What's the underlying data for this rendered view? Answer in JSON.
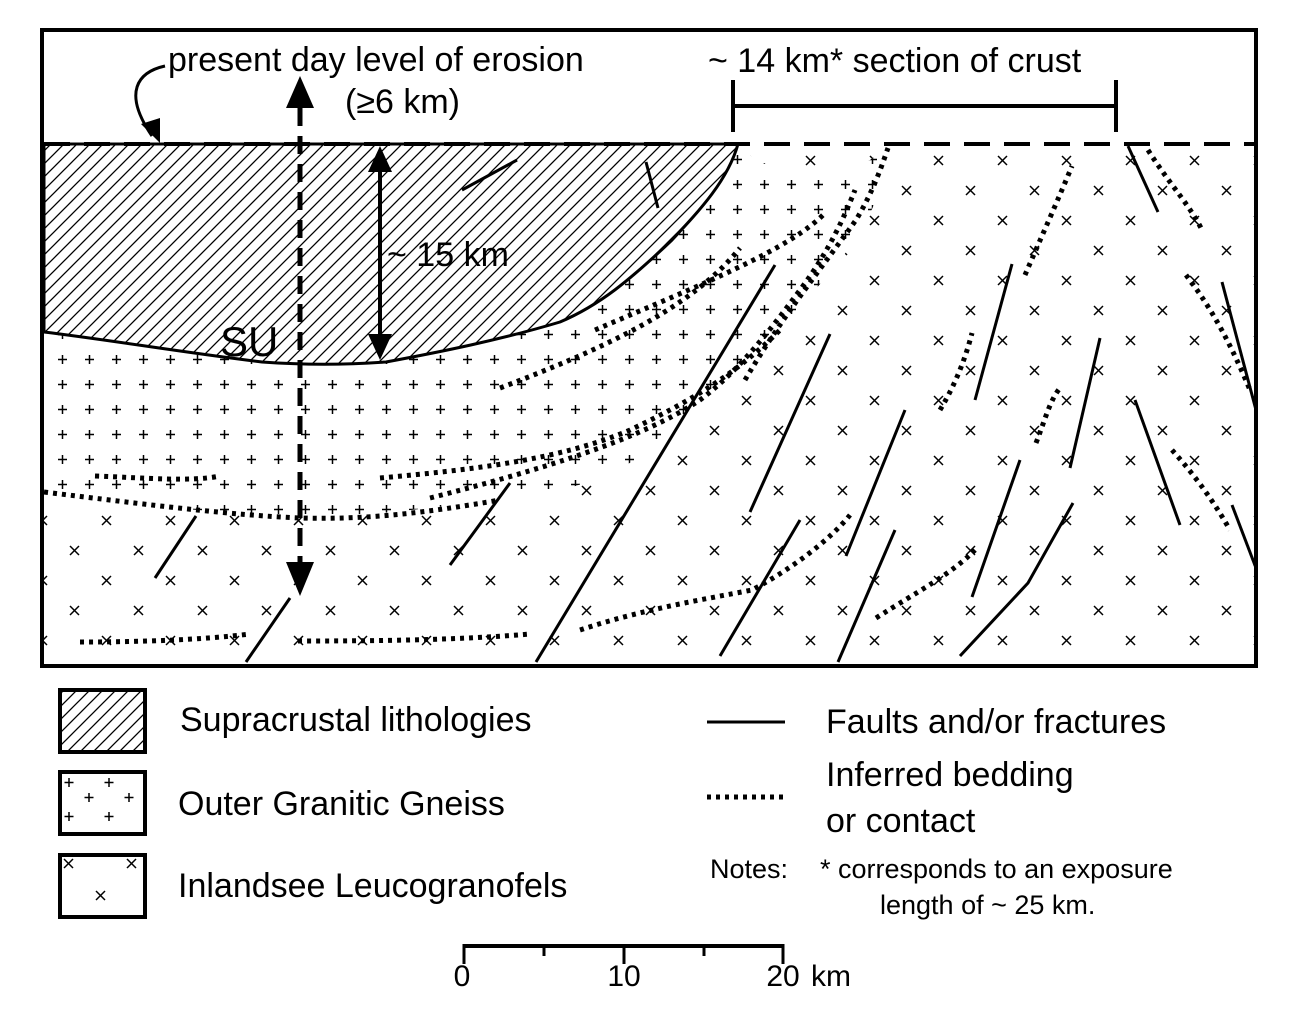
{
  "section": {
    "erosion_label": "present day level of erosion",
    "erosion_depth": "(≥6 km)",
    "crust_label": "~ 14 km* section of crust",
    "depth_label": "~ 15 km",
    "unit_label": "SU"
  },
  "legend": {
    "items": [
      {
        "label": "Supracrustal lithologies",
        "pattern": "diagonal-hatch"
      },
      {
        "label": "Outer Granitic Gneiss",
        "pattern": "plus-signs"
      },
      {
        "label": "Inlandsee Leucogranofels",
        "pattern": "x-signs"
      }
    ],
    "lines": [
      {
        "label": "Faults and/or fractures",
        "style": "solid"
      },
      {
        "label_line1": "Inferred bedding",
        "label_line2": "or contact",
        "style": "dotted"
      }
    ],
    "notes_label": "Notes:",
    "notes_line1": "* corresponds to an exposure",
    "notes_line2": "length of ~ 25 km."
  },
  "scale_bar": {
    "ticks": [
      "0",
      "10",
      "20"
    ],
    "unit": "km"
  },
  "colors": {
    "ink": "#000000",
    "paper": "#ffffff"
  }
}
